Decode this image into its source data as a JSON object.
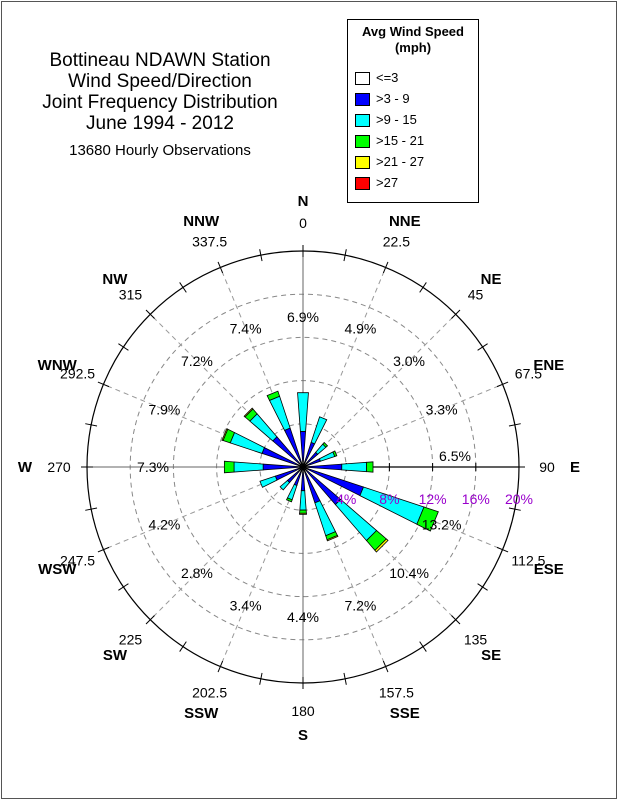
{
  "title": {
    "lines": [
      "Bottineau NDAWN Station",
      "Wind Speed/Direction",
      "Joint Frequency Distribution",
      "June 1994 - 2012"
    ],
    "observations": "13680 Hourly Observations"
  },
  "legend": {
    "title_line1": "Avg Wind Speed",
    "title_line2": "(mph)",
    "items": [
      {
        "label": "<=3",
        "color": "#ffffff"
      },
      {
        "label": ">3 - 9",
        "color": "#0000ff"
      },
      {
        "label": ">9 - 15",
        "color": "#00ffff"
      },
      {
        "label": ">15 - 21",
        "color": "#00ff00"
      },
      {
        "label": ">21 - 27",
        "color": "#ffff00"
      },
      {
        "label": ">27",
        "color": "#ff0000"
      }
    ]
  },
  "chart_data": {
    "type": "wind_rose",
    "radial_ticks": [
      "4%",
      "8%",
      "12%",
      "16%",
      "20%"
    ],
    "radial_max": 20,
    "directions": [
      {
        "name": "N",
        "deg": "0",
        "angle": 0,
        "pct": "6.9%",
        "segments": [
          0.3,
          3.0,
          3.6,
          0,
          0,
          0
        ]
      },
      {
        "name": "NNE",
        "deg": "22.5",
        "angle": 22.5,
        "pct": "4.9%",
        "segments": [
          0.3,
          2.1,
          2.5,
          0,
          0,
          0
        ]
      },
      {
        "name": "NE",
        "deg": "45",
        "angle": 45,
        "pct": "3.0%",
        "segments": [
          0.2,
          1.6,
          1.0,
          0.2,
          0,
          0
        ]
      },
      {
        "name": "ENE",
        "deg": "67.5",
        "angle": 67.5,
        "pct": "3.3%",
        "segments": [
          0.2,
          1.5,
          1.4,
          0.2,
          0,
          0
        ]
      },
      {
        "name": "E",
        "deg": "90",
        "angle": 90,
        "pct": "6.5%",
        "segments": [
          0.3,
          3.3,
          2.3,
          0.6,
          0,
          0
        ]
      },
      {
        "name": "ESE",
        "deg": "112.5",
        "angle": 112.5,
        "pct": "13.2%",
        "segments": [
          0.4,
          5.5,
          5.9,
          1.4,
          0,
          0
        ]
      },
      {
        "name": "SE",
        "deg": "135",
        "angle": 135,
        "pct": "10.4%",
        "segments": [
          0.3,
          4.3,
          4.4,
          1.2,
          0.2,
          0
        ]
      },
      {
        "name": "SSE",
        "deg": "157.5",
        "angle": 157.5,
        "pct": "7.2%",
        "segments": [
          0.3,
          3.2,
          3.2,
          0.4,
          0.1,
          0
        ]
      },
      {
        "name": "S",
        "deg": "180",
        "angle": 180,
        "pct": "4.4%",
        "segments": [
          0.2,
          2.0,
          1.8,
          0.3,
          0.1,
          0
        ]
      },
      {
        "name": "SSW",
        "deg": "202.5",
        "angle": 202.5,
        "pct": "3.4%",
        "segments": [
          0.2,
          1.6,
          1.4,
          0.2,
          0,
          0
        ]
      },
      {
        "name": "SW",
        "deg": "225",
        "angle": 225,
        "pct": "2.8%",
        "segments": [
          0.2,
          1.7,
          0.9,
          0,
          0,
          0
        ]
      },
      {
        "name": "WSW",
        "deg": "247.5",
        "angle": 247.5,
        "pct": "4.2%",
        "segments": [
          0.2,
          2.5,
          1.5,
          0,
          0,
          0
        ]
      },
      {
        "name": "W",
        "deg": "270",
        "angle": 270,
        "pct": "7.3%",
        "segments": [
          0.3,
          3.4,
          2.7,
          0.9,
          0,
          0
        ]
      },
      {
        "name": "WNW",
        "deg": "292.5",
        "angle": 292.5,
        "pct": "7.9%",
        "segments": [
          0.3,
          3.7,
          3.1,
          0.7,
          0.1,
          0
        ]
      },
      {
        "name": "NW",
        "deg": "315",
        "angle": 315,
        "pct": "7.2%",
        "segments": [
          0.3,
          3.4,
          2.8,
          0.6,
          0.1,
          0
        ]
      },
      {
        "name": "NNW",
        "deg": "337.5",
        "angle": 337.5,
        "pct": "7.4%",
        "segments": [
          0.3,
          3.5,
          3.1,
          0.5,
          0,
          0
        ]
      }
    ],
    "colors": {
      "label_pct": "#9900cc"
    }
  }
}
